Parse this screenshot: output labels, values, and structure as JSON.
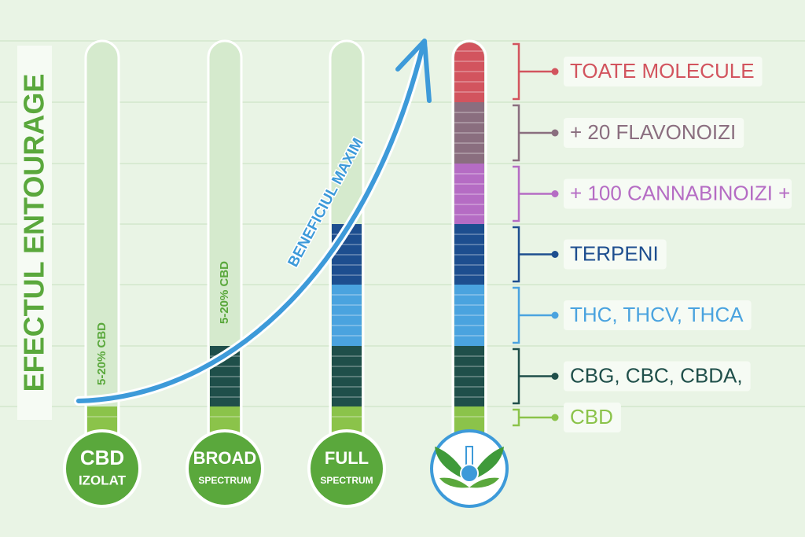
{
  "side_title": "EFECTUL ENTOURAGE",
  "arrow_label": "BENEFICIUL MAXIM",
  "thermometers": [
    {
      "line1": "CBD",
      "line2": "IZOLAT",
      "concentration": "5-20% CBD"
    },
    {
      "line1": "BROAD",
      "line2": "SPECTRUM",
      "concentration": "5-20% CBD"
    },
    {
      "line1": "FULL",
      "line2": "SPECTRUM"
    },
    {}
  ],
  "legend": [
    "TOATE MOLECULE",
    "+ 20 FLAVONOIZI",
    "+ 100 CANNABINOIZI +",
    "TERPENI",
    "THC, THCV, THCA",
    "CBG, CBC, CBDA,",
    "CBD"
  ]
}
